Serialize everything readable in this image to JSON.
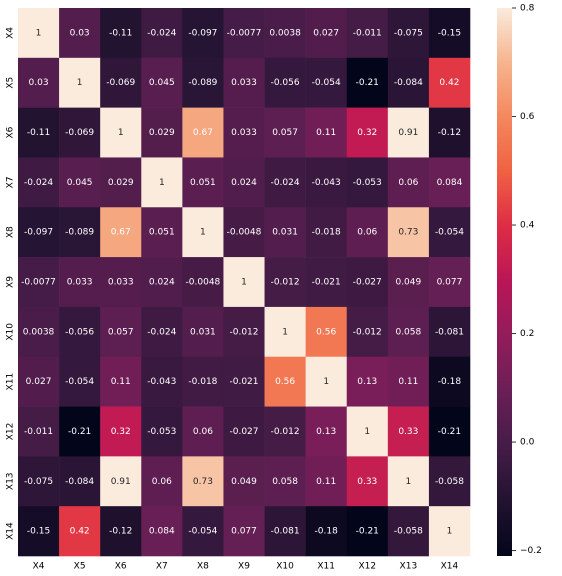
{
  "chart_data": {
    "type": "heatmap",
    "x_categories": [
      "X4",
      "X5",
      "X6",
      "X7",
      "X8",
      "X9",
      "X10",
      "X11",
      "X12",
      "X13",
      "X14"
    ],
    "y_categories": [
      "X4",
      "X5",
      "X6",
      "X7",
      "X8",
      "X9",
      "X10",
      "X11",
      "X12",
      "X13",
      "X14"
    ],
    "values": [
      [
        1,
        0.03,
        -0.11,
        -0.024,
        -0.097,
        -0.0077,
        0.0038,
        0.027,
        -0.011,
        -0.075,
        -0.15
      ],
      [
        0.03,
        1,
        -0.069,
        0.045,
        -0.089,
        0.033,
        -0.056,
        -0.054,
        -0.21,
        -0.084,
        0.42
      ],
      [
        -0.11,
        -0.069,
        1,
        0.029,
        0.67,
        0.033,
        0.057,
        0.11,
        0.32,
        0.91,
        -0.12
      ],
      [
        -0.024,
        0.045,
        0.029,
        1,
        0.051,
        0.024,
        -0.024,
        -0.043,
        -0.053,
        0.06,
        0.084
      ],
      [
        -0.097,
        -0.089,
        0.67,
        0.051,
        1,
        -0.0048,
        0.031,
        -0.018,
        0.06,
        0.73,
        -0.054
      ],
      [
        -0.0077,
        0.033,
        0.033,
        0.024,
        -0.0048,
        1,
        -0.012,
        -0.021,
        -0.027,
        0.049,
        0.077
      ],
      [
        0.0038,
        -0.056,
        0.057,
        -0.024,
        0.031,
        -0.012,
        1,
        0.56,
        -0.012,
        0.058,
        -0.081
      ],
      [
        0.027,
        -0.054,
        0.11,
        -0.043,
        -0.018,
        -0.021,
        0.56,
        1,
        0.13,
        0.11,
        -0.18
      ],
      [
        -0.011,
        -0.21,
        0.32,
        -0.053,
        0.06,
        -0.027,
        -0.012,
        0.13,
        1,
        0.33,
        -0.21
      ],
      [
        -0.075,
        -0.084,
        0.91,
        0.06,
        0.73,
        0.049,
        0.058,
        0.11,
        0.33,
        1,
        -0.058
      ],
      [
        -0.15,
        0.42,
        -0.12,
        0.084,
        -0.054,
        0.077,
        -0.081,
        -0.18,
        -0.21,
        -0.058,
        1
      ]
    ],
    "colormap": "rocket",
    "clim": [
      -0.21,
      0.8
    ],
    "colorbar_ticks": [
      {
        "value": -0.2,
        "label": "−0.2"
      },
      {
        "value": 0,
        "label": "0.0"
      },
      0.2,
      0.4,
      0.6,
      0.8
    ]
  }
}
